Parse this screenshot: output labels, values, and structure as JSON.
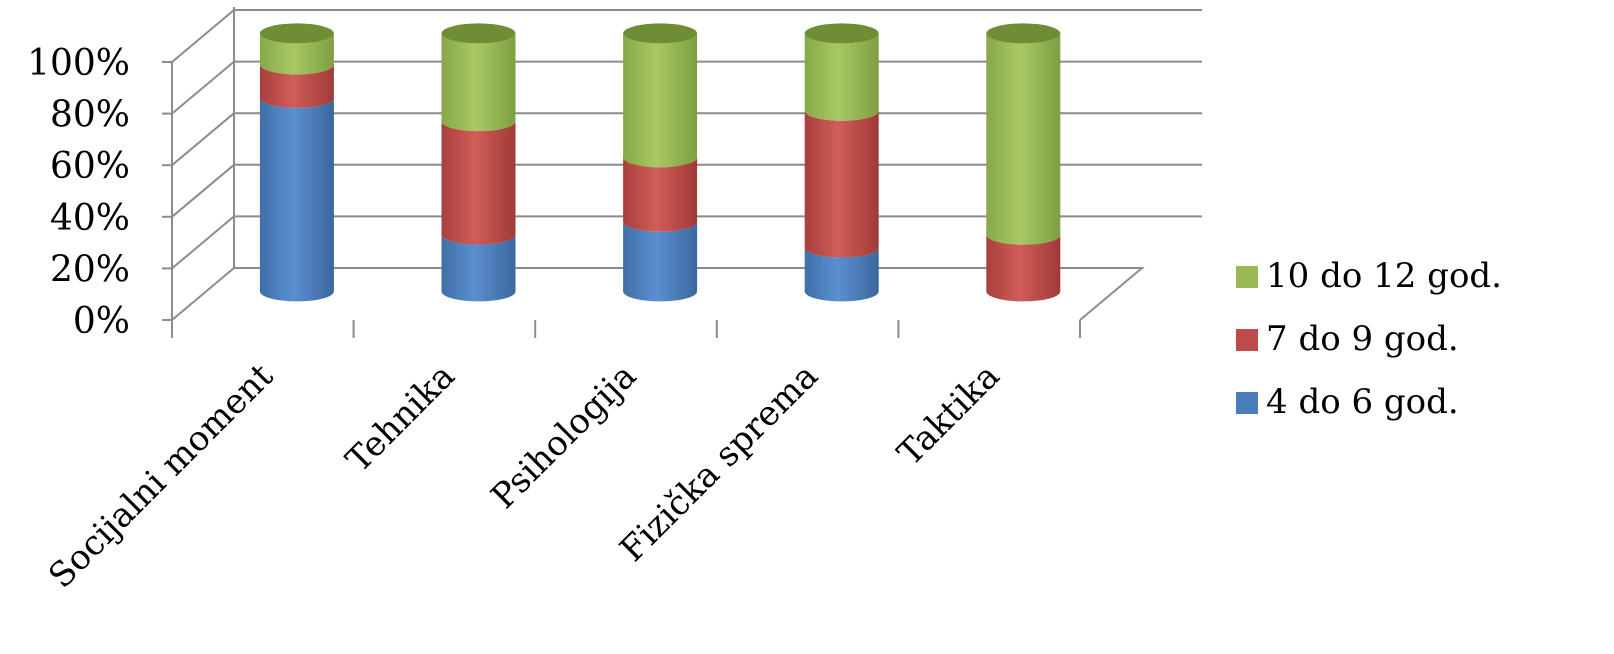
{
  "chart_data": {
    "type": "bar",
    "stacked": true,
    "percent": true,
    "style": "3d-cylinder",
    "title": "",
    "xlabel": "",
    "ylabel": "",
    "categories": [
      "Socijalni moment",
      "Tehnika",
      "Psihologija",
      "Fizička sprema",
      "Taktika"
    ],
    "y_ticks": [
      "0%",
      "20%",
      "40%",
      "60%",
      "80%",
      "100%"
    ],
    "ylim": [
      0,
      100
    ],
    "grid": true,
    "legend_position": "right",
    "series": [
      {
        "name": "4 do 6 god.",
        "color": "#4a7ebb",
        "values": [
          75,
          22,
          27,
          17,
          0
        ]
      },
      {
        "name": "7 do 9 god.",
        "color": "#be4b48",
        "values": [
          13,
          44,
          25,
          53,
          22
        ]
      },
      {
        "name": "10 do 12 god.",
        "color": "#98b954",
        "values": [
          12,
          34,
          48,
          30,
          78
        ]
      }
    ]
  }
}
